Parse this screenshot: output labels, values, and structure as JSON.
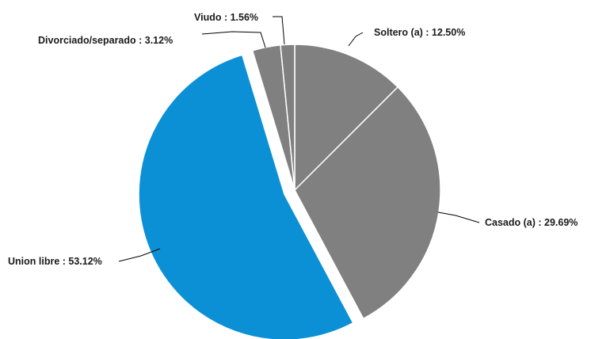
{
  "chart_data": {
    "type": "pie",
    "slices": [
      {
        "label": "Soltero (a)",
        "value": 12.5,
        "value_text": "12.50%",
        "color": "#808080"
      },
      {
        "label": "Casado (a)",
        "value": 29.69,
        "value_text": "29.69%",
        "color": "#808080"
      },
      {
        "label": "Union libre",
        "value": 53.12,
        "value_text": "53.12%",
        "color": "#0b90d6",
        "exploded": true
      },
      {
        "label": "Divorciado/separado",
        "value": 3.12,
        "value_text": "3.12%",
        "color": "#808080"
      },
      {
        "label": "Viudo",
        "value": 1.56,
        "value_text": "1.56%",
        "color": "#808080"
      }
    ],
    "label_separator": " : ",
    "slice_border_color": "#ffffff"
  }
}
